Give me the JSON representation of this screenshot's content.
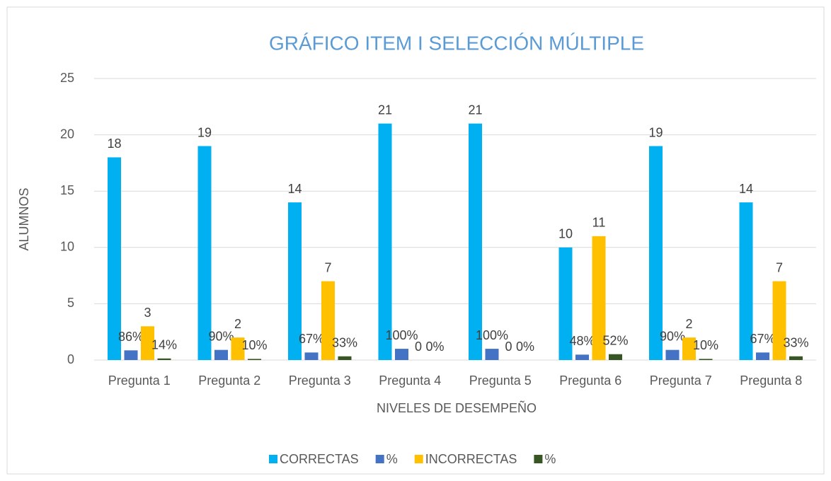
{
  "chart_data": {
    "type": "bar",
    "title": "GRÁFICO ITEM I SELECCIÓN MÚLTIPLE",
    "x_label": "NIVELES DE DESEMPEÑO",
    "y_label": "ALUMNOS",
    "categories": [
      "Pregunta 1",
      "Pregunta 2",
      "Pregunta 3",
      "Pregunta 4",
      "Pregunta 5",
      "Pregunta 6",
      "Pregunta 7",
      "Pregunta 8"
    ],
    "series": [
      {
        "name": "CORRECTAS",
        "color": "#00b0f0",
        "values": [
          18,
          19,
          14,
          21,
          21,
          10,
          19,
          14
        ]
      },
      {
        "name": "%",
        "color": "#4472c4",
        "values": [
          0.86,
          0.9,
          0.67,
          1,
          1,
          0.48,
          0.9,
          0.67
        ],
        "value_labels": [
          "86%",
          "90%",
          "67%",
          "100%",
          "100%",
          "48%",
          "90%",
          "67%"
        ]
      },
      {
        "name": "INCORRECTAS",
        "color": "#ffc000",
        "values": [
          3,
          2,
          7,
          0,
          0,
          11,
          2,
          7
        ]
      },
      {
        "name": "%",
        "color": "#375623",
        "values": [
          0.14,
          0.1,
          0.33,
          0,
          0,
          0.52,
          0.1,
          0.33
        ],
        "value_labels": [
          "14%",
          "10%",
          "33%",
          "0%",
          "0%",
          "52%",
          "10%",
          "33%"
        ]
      }
    ],
    "ylim": [
      0,
      25
    ],
    "yticks": [
      0,
      5,
      10,
      15,
      20,
      25
    ],
    "grid": true,
    "legend": "bottom"
  }
}
